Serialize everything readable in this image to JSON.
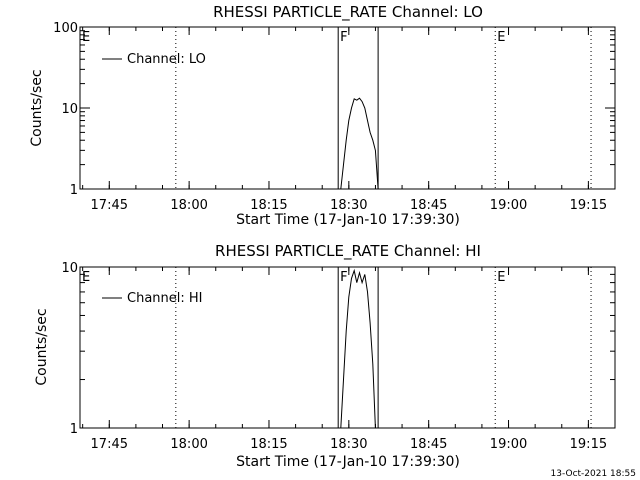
{
  "footer": "13-Oct-2021 18:55",
  "chart_data": [
    {
      "type": "line",
      "title": "RHESSI PARTICLE_RATE Channel: LO",
      "xlabel": "Start Time (17-Jan-10 17:39:30)",
      "ylabel": "Counts/sec",
      "yscale": "log",
      "ylim": [
        1,
        100
      ],
      "xlim": [
        "17:39:30",
        "19:20:00"
      ],
      "x_ticks": [
        "17:45",
        "18:00",
        "18:15",
        "18:30",
        "18:45",
        "19:00",
        "19:15"
      ],
      "y_ticks": [
        "1",
        "10",
        "100"
      ],
      "legend": {
        "position": "top-left",
        "entries": [
          "Channel: LO"
        ]
      },
      "flags": [
        {
          "label": "E",
          "time": "17:39:30",
          "style": "none"
        },
        {
          "label": "F",
          "time": "18:28:00",
          "style": "solid"
        },
        {
          "label": "",
          "time": "18:35:30",
          "style": "solid"
        },
        {
          "label": "",
          "time": "17:57:30",
          "style": "dotted"
        },
        {
          "label": "E",
          "time": "18:57:30",
          "style": "dotted"
        },
        {
          "label": "",
          "time": "19:15:30",
          "style": "dotted"
        }
      ],
      "series": [
        {
          "name": "Channel: LO",
          "x": [
            "18:28:30",
            "18:29:00",
            "18:29:30",
            "18:30:00",
            "18:30:30",
            "18:31:00",
            "18:31:30",
            "18:32:00",
            "18:32:30",
            "18:33:00",
            "18:33:30",
            "18:34:00",
            "18:34:30",
            "18:35:00",
            "18:35:30"
          ],
          "values": [
            1.0,
            2.0,
            4.0,
            7.0,
            10.0,
            13.0,
            12.5,
            13.2,
            12.0,
            10.0,
            7.0,
            5.0,
            4.0,
            3.0,
            1.0
          ]
        }
      ]
    },
    {
      "type": "line",
      "title": "RHESSI PARTICLE_RATE Channel: HI",
      "xlabel": "Start Time (17-Jan-10 17:39:30)",
      "ylabel": "Counts/sec",
      "yscale": "log",
      "ylim": [
        1,
        10
      ],
      "xlim": [
        "17:39:30",
        "19:20:00"
      ],
      "x_ticks": [
        "17:45",
        "18:00",
        "18:15",
        "18:30",
        "18:45",
        "19:00",
        "19:15"
      ],
      "y_ticks": [
        "1",
        "10"
      ],
      "legend": {
        "position": "top-left",
        "entries": [
          "Channel: HI"
        ]
      },
      "flags": [
        {
          "label": "E",
          "time": "17:39:30",
          "style": "none"
        },
        {
          "label": "F",
          "time": "18:28:00",
          "style": "solid"
        },
        {
          "label": "",
          "time": "18:35:30",
          "style": "solid"
        },
        {
          "label": "",
          "time": "17:57:30",
          "style": "dotted"
        },
        {
          "label": "E",
          "time": "18:57:30",
          "style": "dotted"
        },
        {
          "label": "",
          "time": "19:15:30",
          "style": "dotted"
        }
      ],
      "series": [
        {
          "name": "Channel: HI",
          "x": [
            "18:28:30",
            "18:29:00",
            "18:29:30",
            "18:30:00",
            "18:30:30",
            "18:31:00",
            "18:31:30",
            "18:32:00",
            "18:32:30",
            "18:33:00",
            "18:33:30",
            "18:34:00",
            "18:34:30",
            "18:35:00"
          ],
          "values": [
            1.0,
            2.0,
            4.0,
            6.5,
            8.5,
            9.5,
            8.0,
            9.2,
            8.0,
            9.0,
            7.0,
            4.5,
            2.5,
            1.0
          ]
        }
      ]
    }
  ]
}
